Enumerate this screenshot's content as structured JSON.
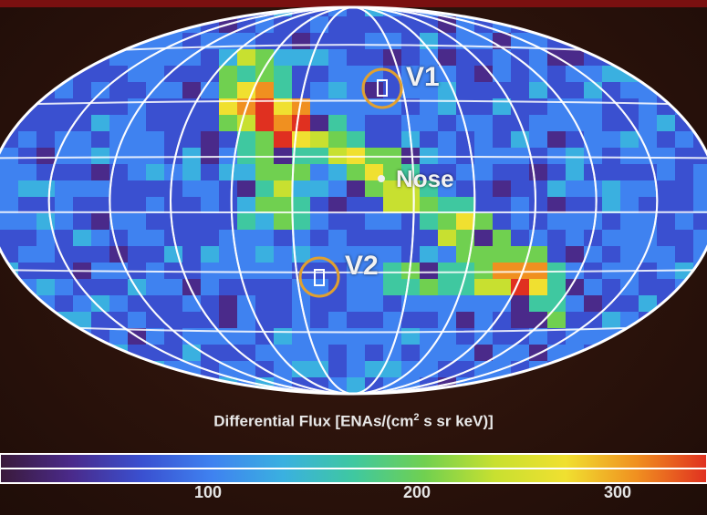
{
  "chart_data": {
    "type": "heatmap",
    "projection": "aitoff/mollweide all-sky map",
    "colorbar": {
      "title_prefix": "Differential Flux [ENAs/(cm",
      "title_sup": "2",
      "title_suffix": " s sr keV)]",
      "ticks": [
        "100",
        "200",
        "300"
      ],
      "tick_values": [
        100,
        200,
        300
      ],
      "range": [
        0,
        350
      ],
      "stops": [
        "#3a1a3a",
        "#4a2a8a",
        "#3a50d0",
        "#3f82f0",
        "#3ab0e0",
        "#3fc8a0",
        "#70d050",
        "#c8e030",
        "#f0e030",
        "#f09020",
        "#e03020"
      ]
    },
    "annotations": [
      {
        "label": "V1",
        "type": "circled-marker"
      },
      {
        "label": "V2",
        "type": "circled-marker"
      },
      {
        "label": "Nose",
        "type": "point"
      }
    ],
    "ribbon_peak_values_approx": [
      300,
      320
    ],
    "background_value_approx": 100,
    "grid": true
  }
}
